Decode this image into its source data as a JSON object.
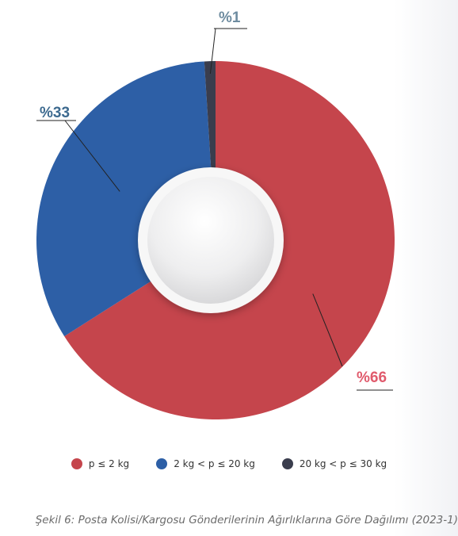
{
  "chart_data": {
    "type": "pie",
    "title": "",
    "categories": [
      "p ≤ 2 kg",
      "2 kg < p ≤ 20 kg",
      "20 kg < p ≤ 30 kg"
    ],
    "values": [
      66,
      33,
      1
    ],
    "data_labels": [
      "%66",
      "%33",
      "%1"
    ],
    "colors": [
      "#c5454c",
      "#2d5fa6",
      "#3a3d4d"
    ],
    "label_colors": [
      "#e05a6c",
      "#3d6a8f",
      "#6e8ca0"
    ],
    "legend_position": "bottom"
  },
  "caption": "Şekil 6: Posta Kolisi/Kargosu Gönderilerinin Ağırlıklarına Göre Dağılımı (2023-1)"
}
